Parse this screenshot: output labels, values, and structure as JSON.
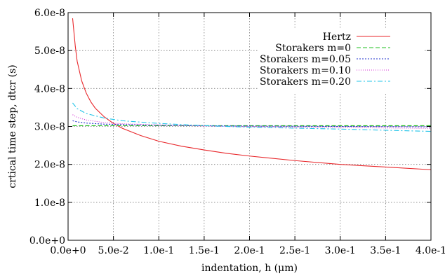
{
  "chart_data": {
    "type": "line",
    "title": "",
    "xlabel": "indentation, h (μm)",
    "ylabel": "crtical time step, dtcr (s)",
    "xlim": [
      0.0,
      0.4
    ],
    "ylim": [
      0.0,
      6e-08
    ],
    "grid": true,
    "legend_position": "top-right",
    "xticks": [
      0.0,
      0.05,
      0.1,
      0.15,
      0.2,
      0.25,
      0.3,
      0.35,
      0.4
    ],
    "xtick_labels": [
      "0.0e+0",
      "5.0e-2",
      "1.0e-1",
      "1.5e-1",
      "2.0e-1",
      "2.5e-1",
      "3.0e-1",
      "3.5e-1",
      "4.0e-1"
    ],
    "yticks": [
      0.0,
      1e-08,
      2e-08,
      3e-08,
      4e-08,
      5e-08,
      6e-08
    ],
    "ytick_labels": [
      "0.0e+0",
      "1.0e-8",
      "2.0e-8",
      "3.0e-8",
      "4.0e-8",
      "5.0e-8",
      "6.0e-8"
    ],
    "series": [
      {
        "name": "Hertz",
        "color": "#e8262a",
        "dash": "solid",
        "x": [
          0.005,
          0.008,
          0.01,
          0.015,
          0.02,
          0.025,
          0.03,
          0.04,
          0.05,
          0.06,
          0.08,
          0.1,
          0.125,
          0.15,
          0.175,
          0.2,
          0.25,
          0.3,
          0.35,
          0.4
        ],
        "y": [
          5.85e-08,
          5.1e-08,
          4.72e-08,
          4.2e-08,
          3.88e-08,
          3.65e-08,
          3.48e-08,
          3.25e-08,
          3.08e-08,
          2.95e-08,
          2.76e-08,
          2.61e-08,
          2.48e-08,
          2.38e-08,
          2.29e-08,
          2.22e-08,
          2.1e-08,
          2e-08,
          1.93e-08,
          1.86e-08
        ]
      },
      {
        "name": "Storakers m=0",
        "color": "#1fbf1f",
        "dash": "6 3",
        "x": [
          0.005,
          0.4
        ],
        "y": [
          3.02e-08,
          3.02e-08
        ]
      },
      {
        "name": "Storakers m=0.05",
        "color": "#2233cc",
        "dash": "2 2",
        "x": [
          0.005,
          0.01,
          0.02,
          0.04,
          0.06,
          0.1,
          0.15,
          0.2,
          0.3,
          0.4
        ],
        "y": [
          3.15e-08,
          3.12e-08,
          3.09e-08,
          3.06e-08,
          3.05e-08,
          3.03e-08,
          3.02e-08,
          3.01e-08,
          3e-08,
          2.99e-08
        ]
      },
      {
        "name": "Storakers m=0.10",
        "color": "#d42fd4",
        "dash": "1 2",
        "x": [
          0.005,
          0.01,
          0.02,
          0.04,
          0.06,
          0.1,
          0.15,
          0.2,
          0.3,
          0.4
        ],
        "y": [
          3.31e-08,
          3.24e-08,
          3.17e-08,
          3.1e-08,
          3.07e-08,
          3.04e-08,
          3.01e-08,
          2.99e-08,
          2.97e-08,
          2.95e-08
        ]
      },
      {
        "name": "Storakers m=0.20",
        "color": "#22c4e8",
        "dash": "7 3 2 3",
        "x": [
          0.005,
          0.01,
          0.02,
          0.04,
          0.06,
          0.1,
          0.15,
          0.2,
          0.3,
          0.4
        ],
        "y": [
          3.62e-08,
          3.47e-08,
          3.34e-08,
          3.22e-08,
          3.15e-08,
          3.08e-08,
          3.02e-08,
          2.98e-08,
          2.93e-08,
          2.87e-08
        ]
      }
    ]
  }
}
